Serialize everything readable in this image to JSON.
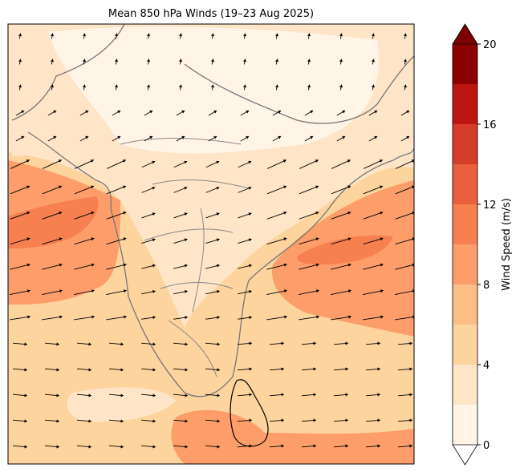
{
  "title": "Mean 850 hPa Winds (19–23 Aug 2025)",
  "colorbar": {
    "label": "Wind Speed (m/s)",
    "levels": [
      0,
      2,
      4,
      6,
      8,
      10,
      12,
      14,
      16,
      18,
      20
    ],
    "colors": [
      "#fff4e6",
      "#fee5c8",
      "#fdd39e",
      "#fdbe85",
      "#fc9d6a",
      "#f6804f",
      "#e8603e",
      "#d43d2a",
      "#bb1610",
      "#8b0000"
    ],
    "ticks": [
      0,
      4,
      8,
      12,
      16,
      20
    ],
    "under_color": "#ffffff",
    "over_color": "#7f0000"
  }
}
